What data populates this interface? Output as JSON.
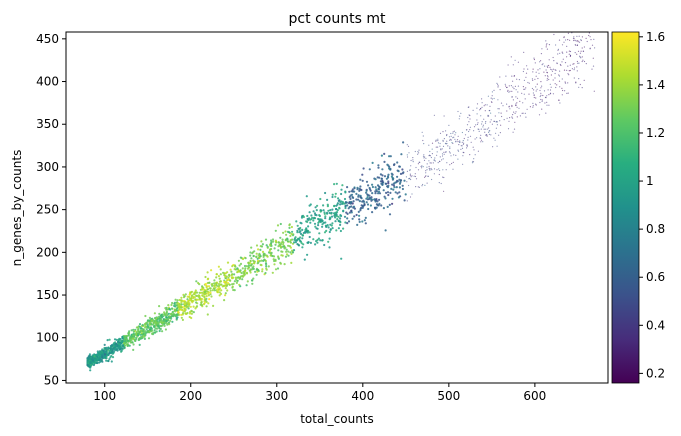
{
  "chart_data": {
    "type": "scatter",
    "title": "pct counts mt",
    "xlabel": "total_counts",
    "ylabel": "n_genes_by_counts",
    "xlim": [
      55,
      685
    ],
    "ylim": [
      47,
      458
    ],
    "xticks": [
      100,
      200,
      300,
      400,
      500,
      600
    ],
    "yticks": [
      50,
      100,
      150,
      200,
      250,
      300,
      350,
      400,
      450
    ],
    "grid": false,
    "legend": "none",
    "colorbar": {
      "label": "",
      "range": [
        0.16,
        1.62
      ],
      "ticks": [
        0.2,
        0.4,
        0.6,
        0.8,
        1,
        1.2,
        1.4,
        1.6
      ],
      "tick_labels": [
        "0.2",
        "0.4",
        "0.6",
        "0.8",
        "1",
        "1.2",
        "1.4",
        "1.6"
      ],
      "colormap": "viridis"
    },
    "trend": {
      "x": [
        80,
        120,
        185,
        250,
        310,
        380,
        450,
        520,
        600,
        660
      ],
      "y": [
        70,
        93,
        133,
        172,
        210,
        255,
        290,
        335,
        395,
        440
      ]
    },
    "bands": [
      {
        "x_range": [
          80,
          122
        ],
        "value": 0.95
      },
      {
        "x_range": [
          122,
          185
        ],
        "value": 1.25
      },
      {
        "x_range": [
          185,
          250
        ],
        "value": 1.42
      },
      {
        "x_range": [
          250,
          320
        ],
        "value": 1.32
      },
      {
        "x_range": [
          320,
          380
        ],
        "value": 1.0
      },
      {
        "x_range": [
          380,
          450
        ],
        "value": 0.62
      },
      {
        "x_range": [
          450,
          560
        ],
        "value": 0.45
      },
      {
        "x_range": [
          560,
          670
        ],
        "value": 0.33
      }
    ]
  }
}
